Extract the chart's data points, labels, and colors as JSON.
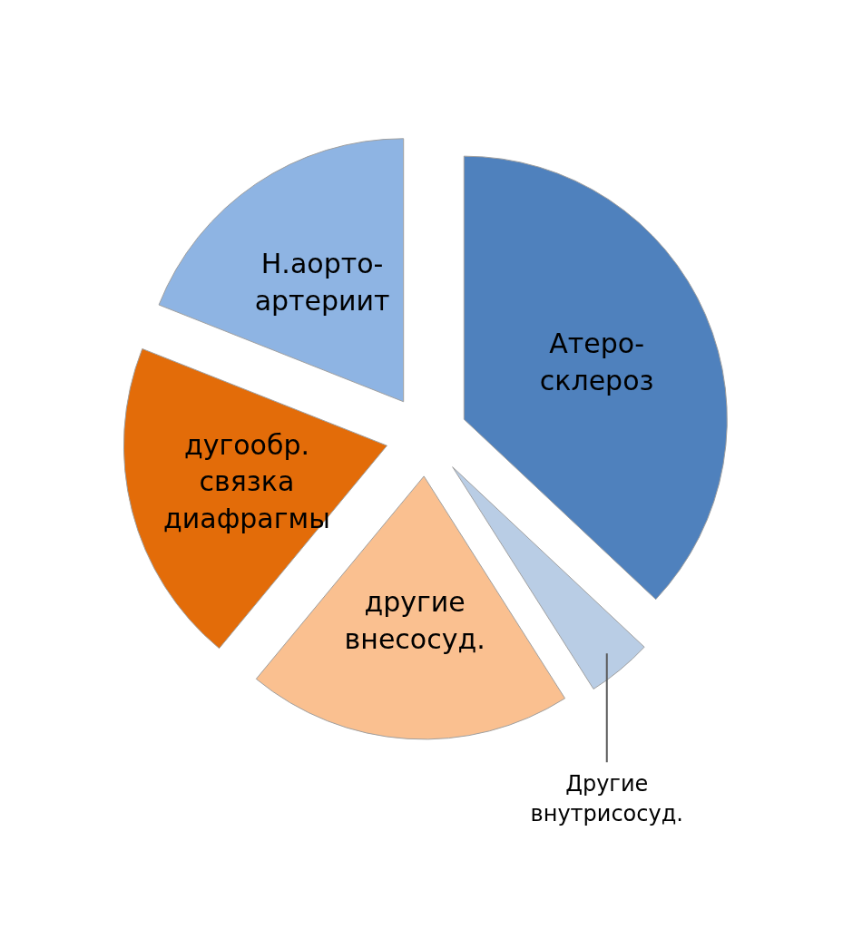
{
  "chart_data": {
    "type": "pie",
    "categories": [
      "Атеро-\nсклероз",
      "Другие\nвнутрисосуд.",
      "другие\nвнесосуд.",
      "дугообр.\nсвязка\nдиафрагмы",
      "Н.аорто-\nартериит"
    ],
    "values": [
      37,
      4,
      20,
      20,
      19
    ],
    "colors": [
      "#4f81bd",
      "#b9cde5",
      "#fac090",
      "#e36c09",
      "#8eb4e3"
    ]
  }
}
